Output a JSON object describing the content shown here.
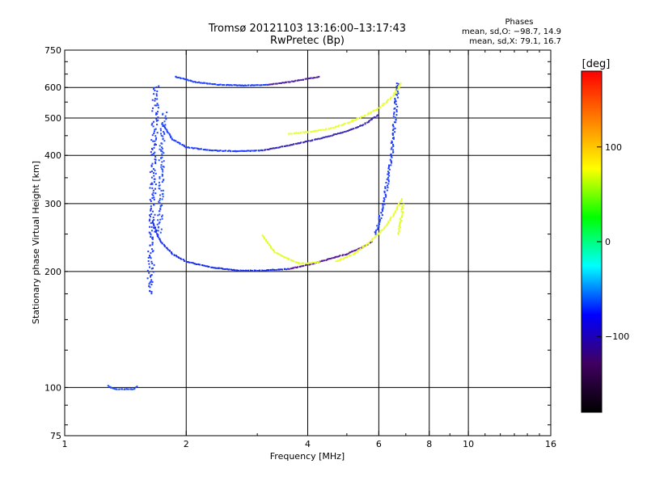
{
  "chart_data": {
    "type": "scatter",
    "title": "Tromsø 20121103 13:16:00–13:17:43",
    "subtitle": "RwPretec (Bp)",
    "xlabel": "Frequency [MHz]",
    "ylabel": "Stationary phase Virtual Height [km]",
    "x_scale": "log",
    "y_scale": "log",
    "xlim": [
      1,
      16
    ],
    "ylim": [
      75,
      750
    ],
    "x_ticks": [
      1,
      2,
      4,
      6,
      8,
      10,
      16
    ],
    "x_tick_labels": [
      "1",
      "2",
      "4",
      "6",
      "8",
      "10",
      "16"
    ],
    "x_gridlines": [
      2,
      4,
      6,
      8,
      10
    ],
    "y_ticks": [
      75,
      100,
      200,
      300,
      400,
      500,
      600,
      750
    ],
    "y_tick_labels": [
      "75",
      "100",
      "200",
      "300",
      "400",
      "500",
      "600",
      "750"
    ],
    "y_gridlines": [
      100,
      200,
      300,
      400,
      500,
      600
    ],
    "grid": true,
    "legend": {
      "title": "Phases",
      "lines": [
        "mean, sd,O: −98.7, 14.9",
        "mean, sd,X:  79.1, 16.7"
      ],
      "placement": "top-right"
    },
    "colorbar": {
      "label": "[deg]",
      "min": -180,
      "max": 180,
      "ticks": [
        100,
        0,
        -100
      ],
      "tick_labels": [
        "100",
        "0",
        "−100"
      ],
      "stops": [
        "#ff0000",
        "#ff8000",
        "#ffff00",
        "#00ff00",
        "#00ffff",
        "#0000ff",
        "#400060",
        "#000000"
      ]
    },
    "series": [
      {
        "curve": [
          [
            1.28,
            101
          ],
          [
            1.33,
            99
          ],
          [
            1.38,
            99
          ],
          [
            1.43,
            99
          ],
          [
            1.48,
            99
          ],
          [
            1.52,
            101
          ]
        ],
        "spread": 0.006,
        "color": "#1e4cff"
      },
      {
        "curve": [
          [
            1.63,
            175
          ],
          [
            1.64,
            230
          ],
          [
            1.65,
            300
          ],
          [
            1.66,
            380
          ],
          [
            1.67,
            470
          ],
          [
            1.68,
            560
          ],
          [
            1.69,
            610
          ]
        ],
        "spread": 0.03,
        "color": "#1e3cff"
      },
      {
        "curve": [
          [
            1.72,
            250
          ],
          [
            1.73,
            320
          ],
          [
            1.74,
            400
          ],
          [
            1.75,
            470
          ],
          [
            1.77,
            520
          ]
        ],
        "spread": 0.025,
        "color": "#2850ff"
      },
      {
        "curve": [
          [
            1.65,
            270
          ],
          [
            1.72,
            240
          ],
          [
            1.85,
            222
          ],
          [
            2.0,
            212
          ],
          [
            2.3,
            205
          ],
          [
            2.7,
            201
          ],
          [
            3.1,
            201
          ],
          [
            3.6,
            203
          ]
        ],
        "spread": 0.006,
        "color": "#1a2fee"
      },
      {
        "curve": [
          [
            3.6,
            203
          ],
          [
            4.0,
            208
          ],
          [
            4.5,
            215
          ],
          [
            5.0,
            222
          ],
          [
            5.5,
            232
          ],
          [
            5.8,
            240
          ]
        ],
        "spread": 0.006,
        "color": "#5a1aa0"
      },
      {
        "curve": [
          [
            5.9,
            250
          ],
          [
            6.0,
            265
          ],
          [
            6.1,
            285
          ],
          [
            6.2,
            310
          ],
          [
            6.3,
            340
          ],
          [
            6.4,
            370
          ],
          [
            6.45,
            400
          ],
          [
            6.5,
            450
          ],
          [
            6.6,
            520
          ],
          [
            6.65,
            580
          ],
          [
            6.7,
            620
          ]
        ],
        "spread": 0.015,
        "color": "#1a3cff"
      },
      {
        "curve": [
          [
            1.75,
            480
          ],
          [
            1.85,
            440
          ],
          [
            2.0,
            420
          ],
          [
            2.3,
            412
          ],
          [
            2.7,
            410
          ],
          [
            3.1,
            412
          ]
        ],
        "spread": 0.006,
        "color": "#1c3cff"
      },
      {
        "curve": [
          [
            3.1,
            412
          ],
          [
            3.6,
            425
          ],
          [
            4.0,
            435
          ],
          [
            4.5,
            448
          ],
          [
            5.0,
            462
          ],
          [
            5.5,
            480
          ],
          [
            6.0,
            510
          ]
        ],
        "spread": 0.006,
        "color": "#3a2ab8"
      },
      {
        "curve": [
          [
            1.88,
            640
          ],
          [
            2.1,
            620
          ],
          [
            2.4,
            610
          ],
          [
            2.8,
            607
          ],
          [
            3.2,
            610
          ]
        ],
        "spread": 0.005,
        "color": "#1e40ff"
      },
      {
        "curve": [
          [
            3.2,
            610
          ],
          [
            3.6,
            620
          ],
          [
            4.0,
            632
          ],
          [
            4.3,
            640
          ]
        ],
        "spread": 0.005,
        "color": "#5020a0"
      },
      {
        "curve": [
          [
            3.1,
            248
          ],
          [
            3.3,
            225
          ],
          [
            3.6,
            215
          ],
          [
            3.8,
            210
          ],
          [
            4.0,
            210
          ],
          [
            4.3,
            212
          ]
        ],
        "spread": 0.006,
        "color": "#e0ff20"
      },
      {
        "curve": [
          [
            4.7,
            212
          ],
          [
            5.2,
            222
          ],
          [
            5.7,
            238
          ],
          [
            6.2,
            260
          ],
          [
            6.6,
            285
          ],
          [
            6.85,
            310
          ]
        ],
        "spread": 0.008,
        "color": "#e8ff30"
      },
      {
        "curve": [
          [
            3.6,
            455
          ],
          [
            4.0,
            460
          ],
          [
            4.5,
            468
          ],
          [
            5.0,
            485
          ],
          [
            5.5,
            505
          ],
          [
            6.0,
            530
          ],
          [
            6.5,
            570
          ],
          [
            6.85,
            620
          ]
        ],
        "spread": 0.008,
        "color": "#e8ff30"
      },
      {
        "curve": [
          [
            6.7,
            250
          ],
          [
            6.8,
            270
          ],
          [
            6.9,
            300
          ]
        ],
        "spread": 0.01,
        "color": "#e0ff20"
      }
    ]
  }
}
